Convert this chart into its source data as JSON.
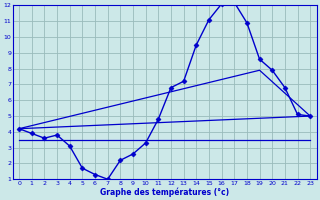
{
  "title": "Graphe des températures (°c)",
  "bg_color": "#cce8e8",
  "line_color": "#0000cc",
  "grid_color": "#99bbbb",
  "xlim": [
    -0.5,
    23.5
  ],
  "ylim": [
    1,
    12
  ],
  "xticks": [
    0,
    1,
    2,
    3,
    4,
    5,
    6,
    7,
    8,
    9,
    10,
    11,
    12,
    13,
    14,
    15,
    16,
    17,
    18,
    19,
    20,
    21,
    22,
    23
  ],
  "yticks": [
    1,
    2,
    3,
    4,
    5,
    6,
    7,
    8,
    9,
    10,
    11,
    12
  ],
  "temp_x": [
    0,
    1,
    2,
    3,
    4,
    5,
    6,
    7,
    8,
    9,
    10,
    11,
    12,
    13,
    14,
    15,
    16,
    17,
    18,
    19,
    20,
    21,
    22,
    23
  ],
  "temp_y": [
    4.2,
    3.9,
    3.6,
    3.8,
    3.1,
    1.7,
    1.3,
    1.0,
    2.2,
    2.6,
    3.3,
    4.8,
    6.8,
    7.2,
    9.5,
    11.1,
    12.1,
    12.2,
    10.9,
    8.6,
    7.9,
    6.8,
    5.1,
    5.0
  ],
  "line1_x": [
    0,
    19,
    23
  ],
  "line1_y": [
    4.2,
    7.9,
    5.0
  ],
  "line2_x": [
    0,
    23
  ],
  "line2_y": [
    4.2,
    5.0
  ],
  "line3_x": [
    0,
    23
  ],
  "line3_y": [
    3.5,
    3.5
  ]
}
